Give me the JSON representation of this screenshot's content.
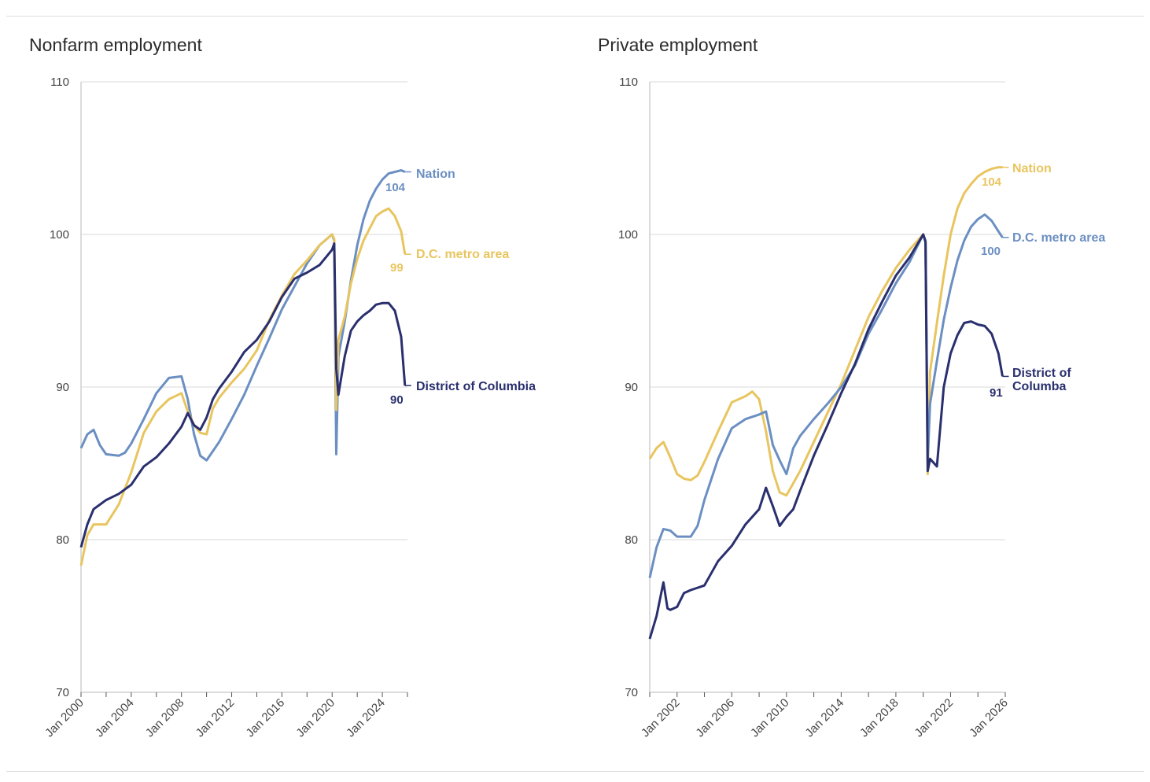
{
  "colors": {
    "nation": "#6b8fc2",
    "metro": "#e8c55f",
    "dc": "#2a2f6e",
    "grid": "#e6e6e6",
    "axis": "#cfcfcf"
  },
  "chart_data": [
    {
      "type": "line",
      "title": "Nonfarm employment",
      "xlabel": "",
      "ylabel": "",
      "ylim": [
        70,
        110
      ],
      "yticks": [
        70,
        80,
        90,
        100,
        110
      ],
      "xlim": [
        2000.0,
        2026.0
      ],
      "xtick_labels": [
        "Jan 2000",
        "Jan 2004",
        "Jan 2008",
        "Jan 2012",
        "Jan 2016",
        "Jan 2020",
        "Jan 2024"
      ],
      "grid": true,
      "series": [
        {
          "key": "nation",
          "name": "Nation",
          "end_label": "104",
          "x": [
            2000.0,
            2000.5,
            2001.0,
            2001.5,
            2002.0,
            2003.0,
            2003.5,
            2004.0,
            2005.0,
            2006.0,
            2007.0,
            2008.0,
            2008.5,
            2009.0,
            2009.5,
            2010.0,
            2011.0,
            2012.0,
            2013.0,
            2014.0,
            2015.0,
            2016.0,
            2017.0,
            2018.0,
            2019.0,
            2020.0,
            2020.17,
            2020.33,
            2020.5,
            2021.0,
            2021.5,
            2022.0,
            2022.5,
            2023.0,
            2023.5,
            2024.0,
            2024.5,
            2025.0,
            2025.5,
            2025.8
          ],
          "values": [
            86.0,
            86.9,
            87.2,
            86.2,
            85.6,
            85.5,
            85.7,
            86.3,
            87.9,
            89.6,
            90.6,
            90.7,
            89.2,
            86.9,
            85.5,
            85.2,
            86.4,
            87.9,
            89.5,
            91.4,
            93.2,
            95.1,
            96.6,
            98.1,
            99.3,
            100.0,
            99.6,
            85.6,
            92.0,
            94.3,
            97.0,
            99.3,
            101.0,
            102.2,
            103.0,
            103.6,
            104.0,
            104.1,
            104.2,
            104.1
          ]
        },
        {
          "key": "metro",
          "name": "D.C. metro area",
          "end_label": "99",
          "x": [
            2000.0,
            2000.5,
            2001.0,
            2002.0,
            2003.0,
            2004.0,
            2005.0,
            2006.0,
            2007.0,
            2008.0,
            2008.5,
            2009.0,
            2009.5,
            2010.0,
            2010.5,
            2011.0,
            2012.0,
            2013.0,
            2014.0,
            2015.0,
            2016.0,
            2017.0,
            2018.0,
            2019.0,
            2020.0,
            2020.17,
            2020.33,
            2020.5,
            2021.0,
            2021.5,
            2022.0,
            2022.5,
            2023.0,
            2023.5,
            2024.0,
            2024.5,
            2025.0,
            2025.5,
            2025.8
          ],
          "values": [
            78.3,
            80.3,
            81.0,
            81.0,
            82.3,
            84.4,
            87.0,
            88.4,
            89.2,
            89.6,
            88.4,
            87.5,
            87.0,
            86.9,
            88.6,
            89.3,
            90.3,
            91.2,
            92.4,
            94.4,
            96.0,
            97.4,
            98.3,
            99.3,
            100.0,
            99.7,
            88.5,
            93.1,
            94.6,
            96.8,
            98.4,
            99.6,
            100.4,
            101.2,
            101.5,
            101.7,
            101.2,
            100.2,
            98.7
          ]
        },
        {
          "key": "dc",
          "name": "District of Columbia",
          "end_label": "90",
          "x": [
            2000.0,
            2000.5,
            2001.0,
            2002.0,
            2003.0,
            2004.0,
            2005.0,
            2006.0,
            2007.0,
            2008.0,
            2008.5,
            2009.0,
            2009.5,
            2010.0,
            2010.5,
            2011.0,
            2012.0,
            2013.0,
            2014.0,
            2015.0,
            2016.0,
            2017.0,
            2018.0,
            2019.0,
            2020.0,
            2020.17,
            2020.33,
            2020.5,
            2021.0,
            2021.5,
            2022.0,
            2022.5,
            2023.0,
            2023.5,
            2024.0,
            2024.5,
            2025.0,
            2025.5,
            2025.8
          ],
          "values": [
            79.5,
            81.0,
            82.0,
            82.6,
            83.0,
            83.6,
            84.8,
            85.4,
            86.3,
            87.4,
            88.3,
            87.5,
            87.2,
            88.0,
            89.2,
            89.9,
            91.0,
            92.3,
            93.1,
            94.3,
            95.9,
            97.1,
            97.5,
            98.0,
            99.0,
            99.4,
            91.2,
            89.5,
            92.0,
            93.7,
            94.3,
            94.7,
            95.0,
            95.4,
            95.5,
            95.5,
            95.0,
            93.3,
            90.1
          ]
        }
      ]
    },
    {
      "type": "line",
      "title": "Private employment",
      "xlabel": "",
      "ylabel": "",
      "ylim": [
        70,
        110
      ],
      "yticks": [
        70,
        80,
        90,
        100,
        110
      ],
      "xlim": [
        2000.0,
        2026.0
      ],
      "xtick_labels": [
        "Jan 2002",
        "Jan 2006",
        "Jan 2010",
        "Jan 2014",
        "Jan 2018",
        "Jan 2022",
        "Jan 2026"
      ],
      "grid": true,
      "series": [
        {
          "key": "metro",
          "name": "Nation",
          "end_label": "104",
          "x": [
            2000.0,
            2000.5,
            2001.0,
            2001.5,
            2002.0,
            2002.5,
            2003.0,
            2003.5,
            2004.0,
            2005.0,
            2006.0,
            2007.0,
            2007.5,
            2008.0,
            2008.5,
            2009.0,
            2009.5,
            2010.0,
            2011.0,
            2012.0,
            2013.0,
            2014.0,
            2015.0,
            2016.0,
            2017.0,
            2018.0,
            2019.0,
            2020.0,
            2020.17,
            2020.33,
            2020.5,
            2021.0,
            2021.5,
            2022.0,
            2022.5,
            2023.0,
            2023.5,
            2024.0,
            2024.5,
            2025.0,
            2025.5,
            2025.8
          ],
          "values": [
            85.3,
            86.0,
            86.4,
            85.4,
            84.3,
            84.0,
            83.9,
            84.2,
            85.1,
            87.1,
            89.0,
            89.4,
            89.7,
            89.2,
            87.1,
            84.5,
            83.1,
            82.9,
            84.5,
            86.4,
            88.3,
            90.2,
            92.4,
            94.6,
            96.3,
            97.8,
            99.0,
            100.0,
            99.6,
            84.3,
            91.0,
            94.2,
            97.3,
            100.0,
            101.7,
            102.7,
            103.3,
            103.8,
            104.1,
            104.3,
            104.4,
            104.4
          ]
        },
        {
          "key": "nation",
          "name": "D.C. metro area",
          "end_label": "100",
          "x": [
            2000.0,
            2000.5,
            2001.0,
            2001.5,
            2002.0,
            2003.0,
            2003.5,
            2004.0,
            2005.0,
            2006.0,
            2007.0,
            2008.0,
            2008.5,
            2009.0,
            2009.5,
            2010.0,
            2010.5,
            2011.0,
            2012.0,
            2013.0,
            2014.0,
            2015.0,
            2016.0,
            2017.0,
            2018.0,
            2019.0,
            2020.0,
            2020.17,
            2020.33,
            2020.5,
            2021.0,
            2021.5,
            2022.0,
            2022.5,
            2023.0,
            2023.5,
            2024.0,
            2024.5,
            2025.0,
            2025.5,
            2025.8
          ],
          "values": [
            77.5,
            79.5,
            80.7,
            80.6,
            80.2,
            80.2,
            80.9,
            82.6,
            85.3,
            87.3,
            87.9,
            88.2,
            88.4,
            86.2,
            85.2,
            84.3,
            86.0,
            86.8,
            87.9,
            88.9,
            90.0,
            91.4,
            93.5,
            95.1,
            96.8,
            98.2,
            100.0,
            99.6,
            85.2,
            88.9,
            91.7,
            94.4,
            96.5,
            98.3,
            99.6,
            100.5,
            101.0,
            101.3,
            100.9,
            100.2,
            99.8
          ]
        },
        {
          "key": "dc",
          "name": "District of Columba",
          "end_label": "91",
          "x": [
            2000.0,
            2000.5,
            2001.0,
            2001.3,
            2001.5,
            2002.0,
            2002.5,
            2003.0,
            2004.0,
            2005.0,
            2006.0,
            2007.0,
            2008.0,
            2008.5,
            2009.0,
            2009.5,
            2010.0,
            2010.5,
            2011.0,
            2012.0,
            2013.0,
            2014.0,
            2015.0,
            2016.0,
            2017.0,
            2018.0,
            2019.0,
            2020.0,
            2020.17,
            2020.33,
            2020.5,
            2021.0,
            2021.5,
            2022.0,
            2022.5,
            2023.0,
            2023.5,
            2024.0,
            2024.5,
            2025.0,
            2025.5,
            2025.8
          ],
          "values": [
            73.5,
            75.0,
            77.2,
            75.5,
            75.4,
            75.6,
            76.5,
            76.7,
            77.0,
            78.6,
            79.6,
            81.0,
            82.0,
            83.4,
            82.2,
            80.9,
            81.5,
            82.0,
            83.2,
            85.5,
            87.5,
            89.6,
            91.5,
            93.8,
            95.6,
            97.3,
            98.5,
            100.0,
            99.5,
            84.5,
            85.3,
            84.8,
            90.0,
            92.2,
            93.4,
            94.2,
            94.3,
            94.1,
            94.0,
            93.5,
            92.2,
            90.7
          ]
        }
      ]
    }
  ]
}
